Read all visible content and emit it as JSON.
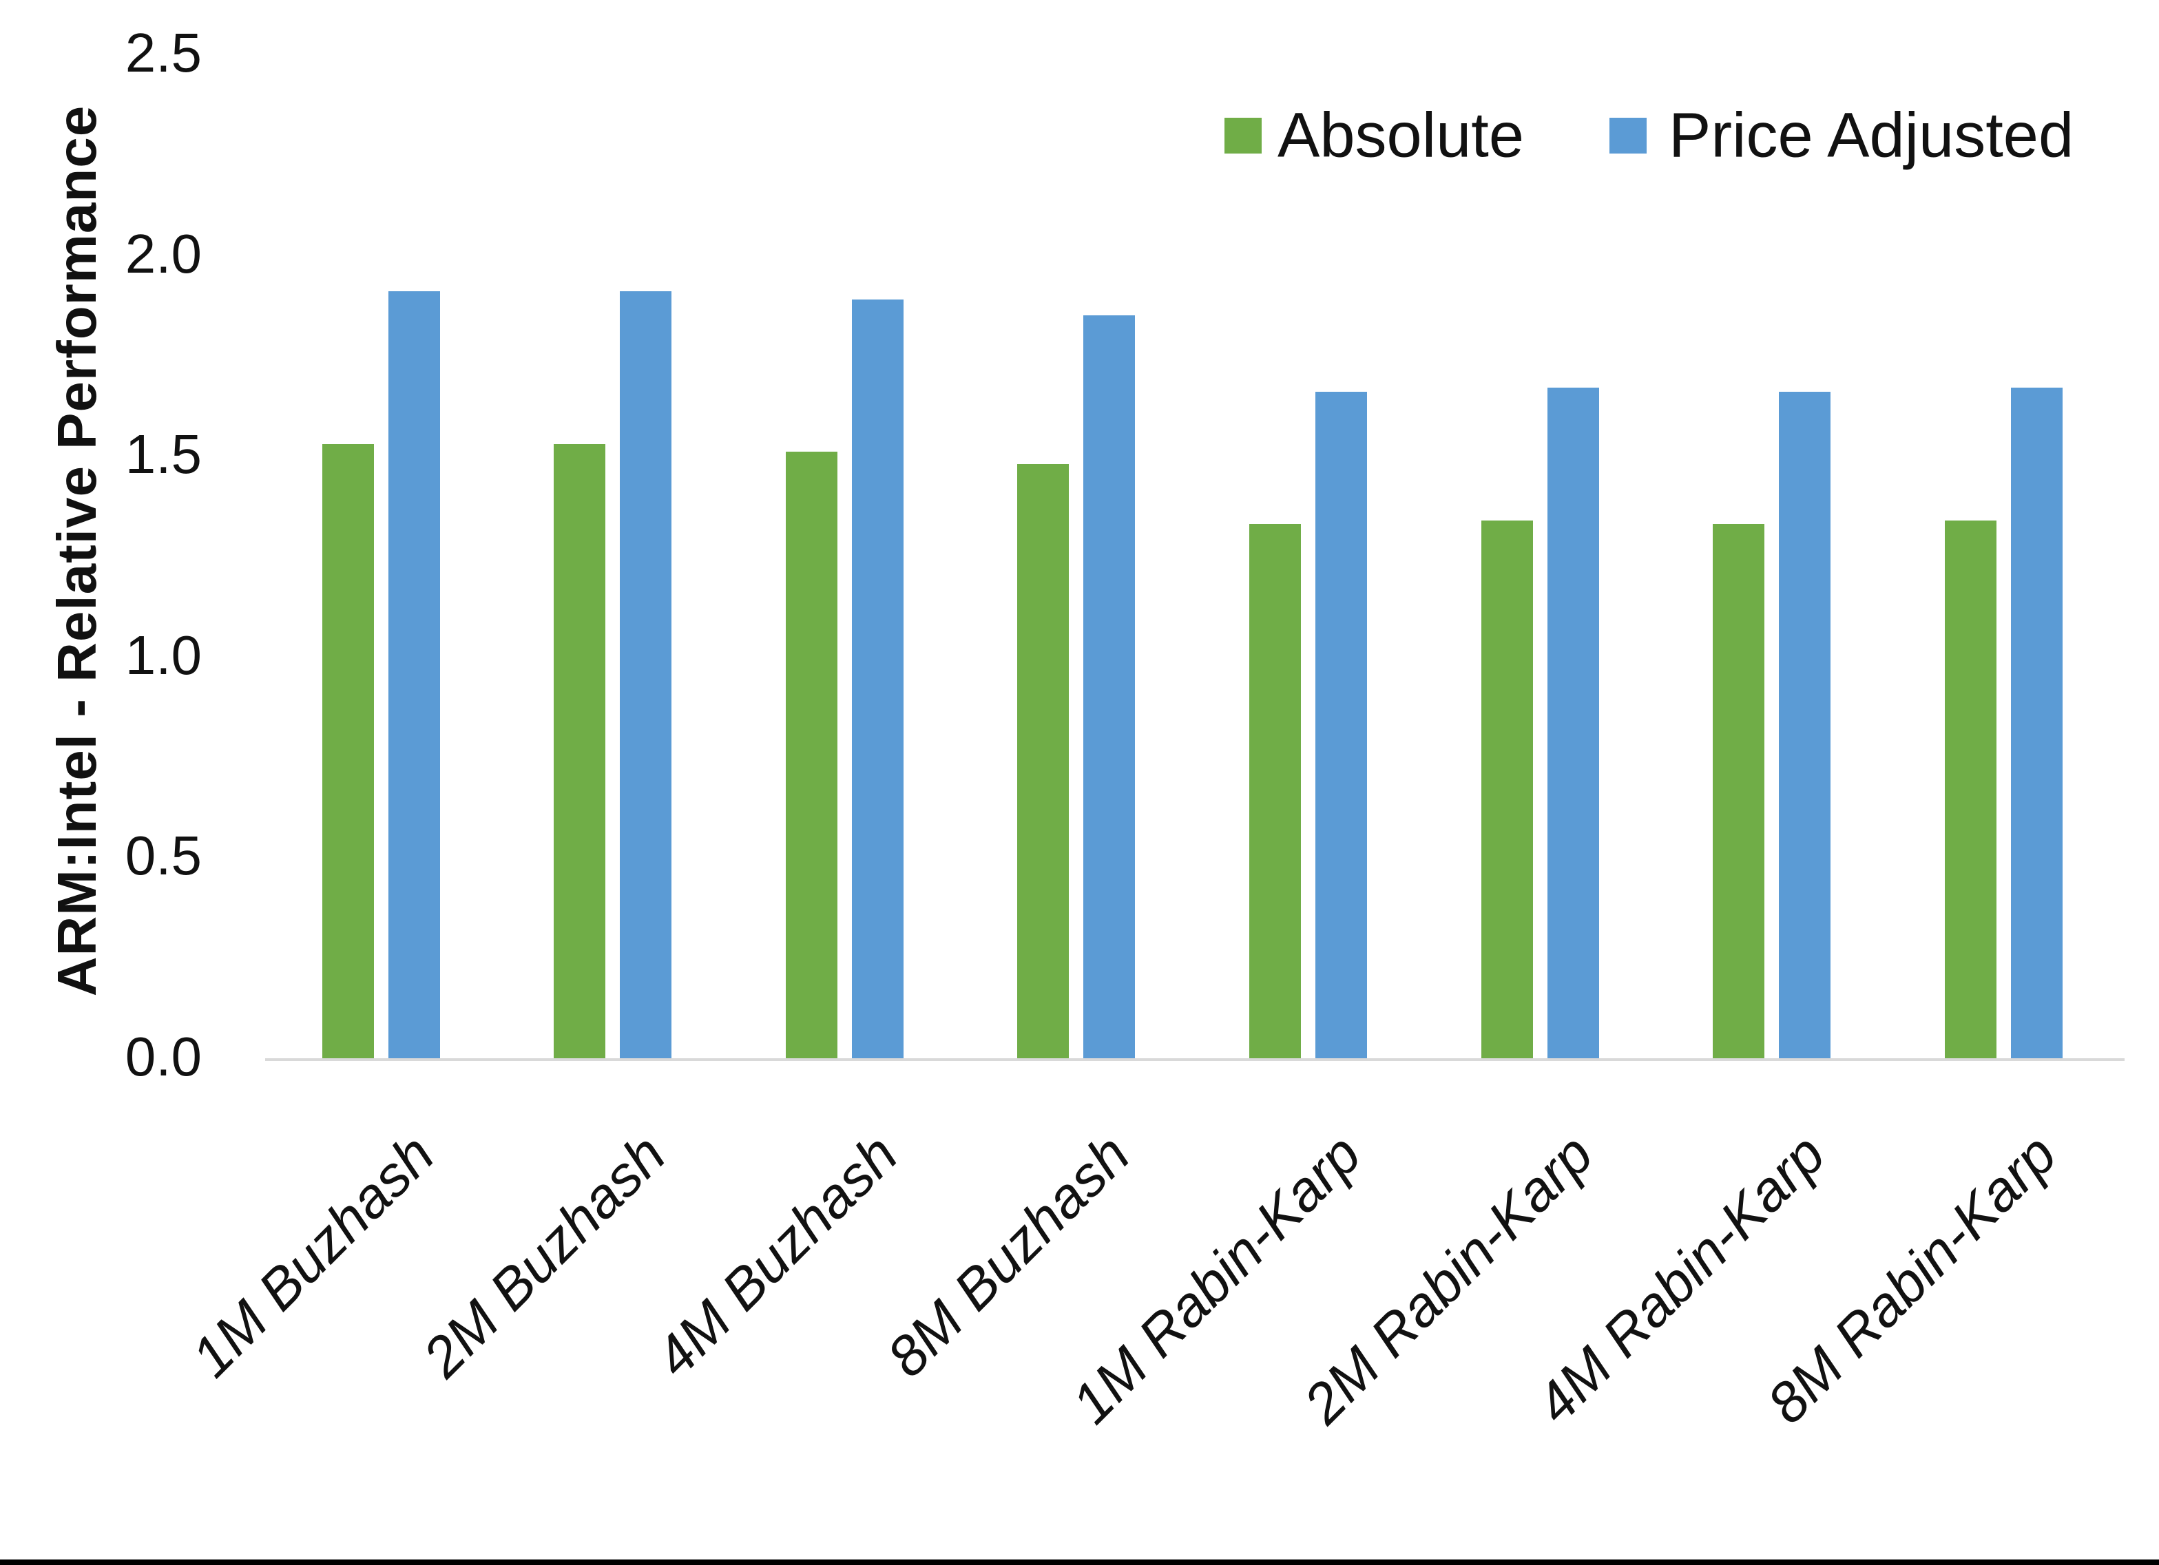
{
  "page": {
    "background": "#FFFFFF",
    "bottom_border_color": "#000000"
  },
  "chart_data": {
    "type": "bar",
    "title": "",
    "categories": [
      "1M Buzhash",
      "2M Buzhash",
      "4M Buzhash",
      "8M Buzhash",
      "1M Rabin-Karp",
      "2M Rabin-Karp",
      "4M Rabin-Karp",
      "8M Rabin-Karp"
    ],
    "series": [
      {
        "name": "Absolute",
        "color": "#70AD47",
        "values": [
          1.53,
          1.53,
          1.51,
          1.48,
          1.33,
          1.34,
          1.33,
          1.34
        ]
      },
      {
        "name": "Price Adjusted",
        "color": "#5B9BD5",
        "values": [
          1.91,
          1.91,
          1.89,
          1.85,
          1.66,
          1.67,
          1.66,
          1.67
        ]
      }
    ],
    "xlabel": "",
    "ylabel": "ARM:Intel - Relative Performance",
    "ylim": [
      0,
      2.5
    ],
    "ytick_step": 0.5,
    "ytick_labels": [
      "0.0",
      "0.5",
      "1.0",
      "1.5",
      "2.0",
      "2.5"
    ],
    "grid": false,
    "legend_position": "top-right",
    "axis_line_color": "#D9D9D9",
    "bar_colors": {
      "absolute": "#70AD47",
      "price_adjusted": "#5B9BD5"
    }
  }
}
